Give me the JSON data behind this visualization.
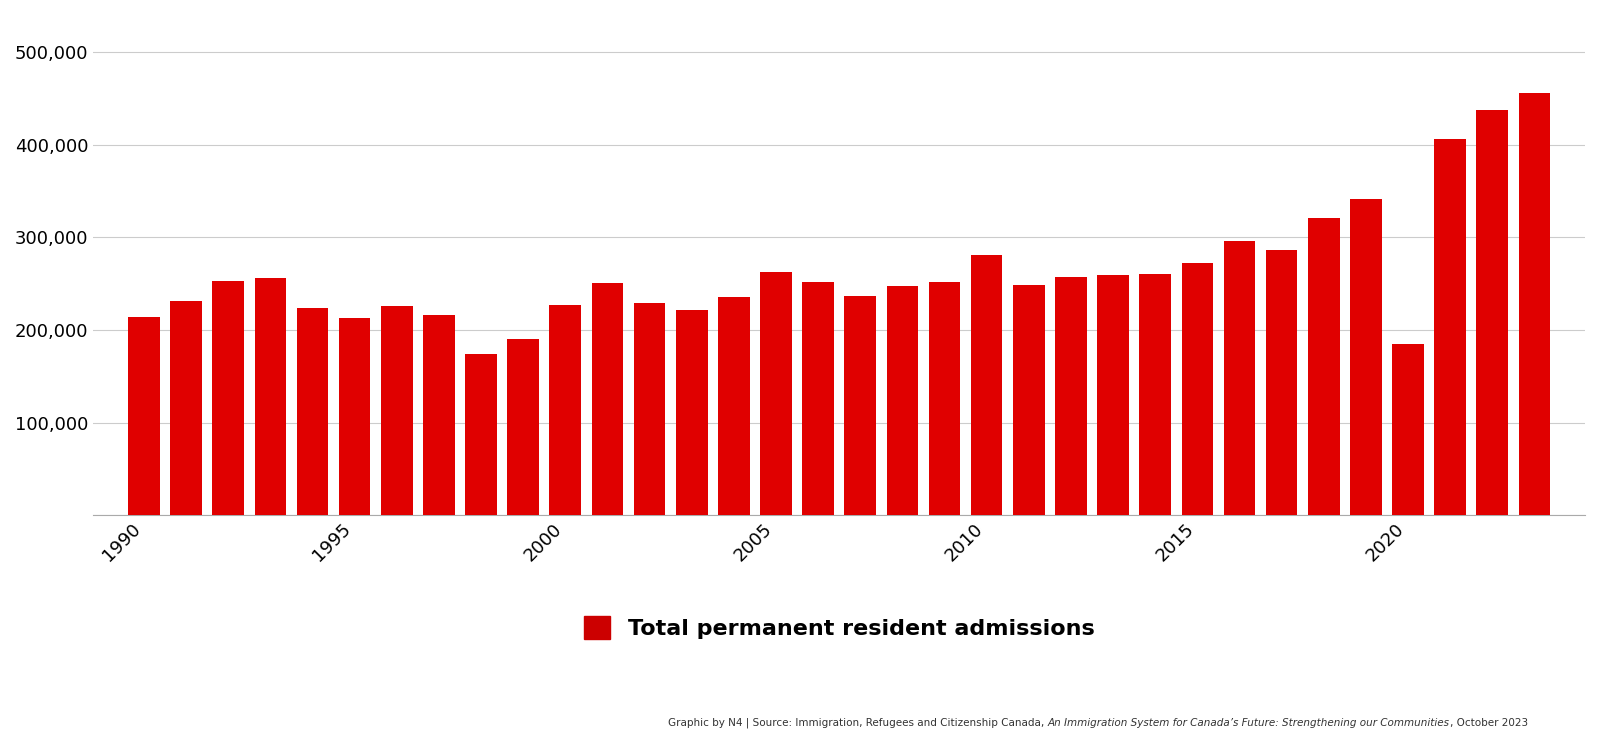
{
  "years": [
    1990,
    1991,
    1992,
    1993,
    1994,
    1995,
    1996,
    1997,
    1998,
    1999,
    2000,
    2001,
    2002,
    2003,
    2004,
    2005,
    2006,
    2007,
    2008,
    2009,
    2010,
    2011,
    2012,
    2013,
    2014,
    2015,
    2016,
    2017,
    2018,
    2019,
    2020,
    2021,
    2022,
    2023
  ],
  "values": [
    214230,
    230781,
    252842,
    255819,
    223875,
    212865,
    226073,
    216035,
    174195,
    189922,
    227455,
    250640,
    229091,
    221352,
    235824,
    262236,
    251649,
    236754,
    247202,
    252172,
    280681,
    248747,
    257515,
    259024,
    260411,
    271845,
    296346,
    286479,
    321065,
    341181,
    184370,
    405999,
    437180,
    456000
  ],
  "bar_color": "#e00000",
  "background_color": "#ffffff",
  "legend_label": "Total permanent resident admissions",
  "legend_color": "#cc0000",
  "ytick_values": [
    0,
    100000,
    200000,
    300000,
    400000,
    500000
  ],
  "ylim": [
    0,
    540000
  ],
  "xlim": [
    1988.8,
    2024.2
  ],
  "xtick_years": [
    1990,
    1995,
    2000,
    2005,
    2010,
    2015,
    2020
  ],
  "source_plain1": "Graphic by N4 | Source: Immigration, Refugees and Citizenship Canada, ",
  "source_italic": "An Immigration System for Canada’s Future: Strengthening our Communities",
  "source_plain2": ", October 2023",
  "grid_color": "#cccccc",
  "tick_label_fontsize": 13,
  "legend_fontsize": 16,
  "bar_width": 0.75
}
